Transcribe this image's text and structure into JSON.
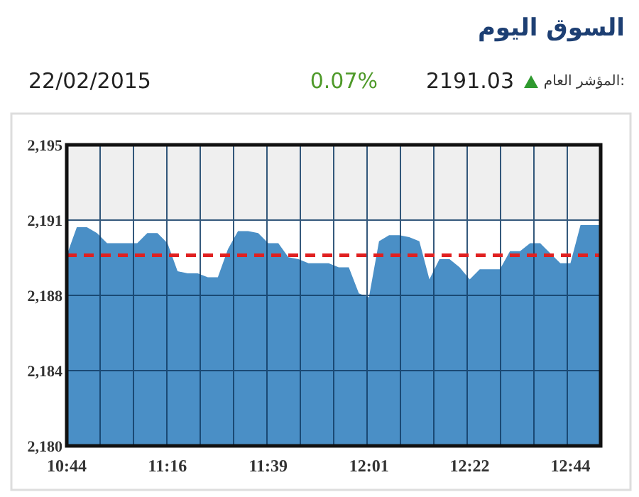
{
  "chart_data": {
    "type": "area",
    "title": "السوق اليوم",
    "annotations": [
      "المؤشر العام:",
      "2191.03",
      "0.07%",
      "22/02/2015"
    ],
    "categories": [
      "10:44",
      null,
      null,
      null,
      null,
      null,
      null,
      null,
      null,
      null,
      "11:16",
      null,
      null,
      null,
      null,
      null,
      null,
      null,
      null,
      null,
      "11:39",
      null,
      null,
      null,
      null,
      null,
      null,
      null,
      null,
      null,
      "12:01",
      null,
      null,
      null,
      null,
      null,
      null,
      null,
      null,
      null,
      "12:22",
      null,
      null,
      null,
      null,
      null,
      null,
      null,
      null,
      null,
      "12:44",
      null,
      null,
      null
    ],
    "series": [
      {
        "color": "#4a8fc6",
        "values": [
          2189.5,
          2190.9,
          2190.9,
          2190.6,
          2190.1,
          2190.1,
          2190.1,
          2190.1,
          2190.6,
          2190.6,
          2190.1,
          2188.7,
          2188.6,
          2188.6,
          2188.4,
          2188.4,
          2189.8,
          2190.7,
          2190.7,
          2190.6,
          2190.1,
          2190.1,
          2189.4,
          2189.3,
          2189.1,
          2189.1,
          2189.1,
          2188.9,
          2188.9,
          2187.6,
          2187.4,
          2190.2,
          2190.5,
          2190.5,
          2190.4,
          2190.2,
          2188.3,
          2189.3,
          2189.3,
          2188.9,
          2188.3,
          2188.8,
          2188.8,
          2188.8,
          2189.7,
          2189.7,
          2190.1,
          2190.1,
          2189.6,
          2189.1,
          2189.1,
          2191.0,
          2191.0,
          2191.0
        ]
      }
    ],
    "ylim": [
      2180,
      2195
    ],
    "yticks": [
      {
        "value": 2180,
        "label": "2,180"
      },
      {
        "value": 2183.75,
        "label": "2,184"
      },
      {
        "value": 2187.5,
        "label": "2,188"
      },
      {
        "value": 2191.25,
        "label": "2,191"
      },
      {
        "value": 2195,
        "label": "2,195"
      }
    ],
    "ref_lines": [
      {
        "axis": "y",
        "value": 2189.5,
        "color": "#e02020",
        "line_style": "dashed"
      }
    ],
    "bands": [
      {
        "axis": "y",
        "from": 2191.25,
        "to": 2195,
        "color": "#efefef"
      }
    ],
    "grid": true
  }
}
